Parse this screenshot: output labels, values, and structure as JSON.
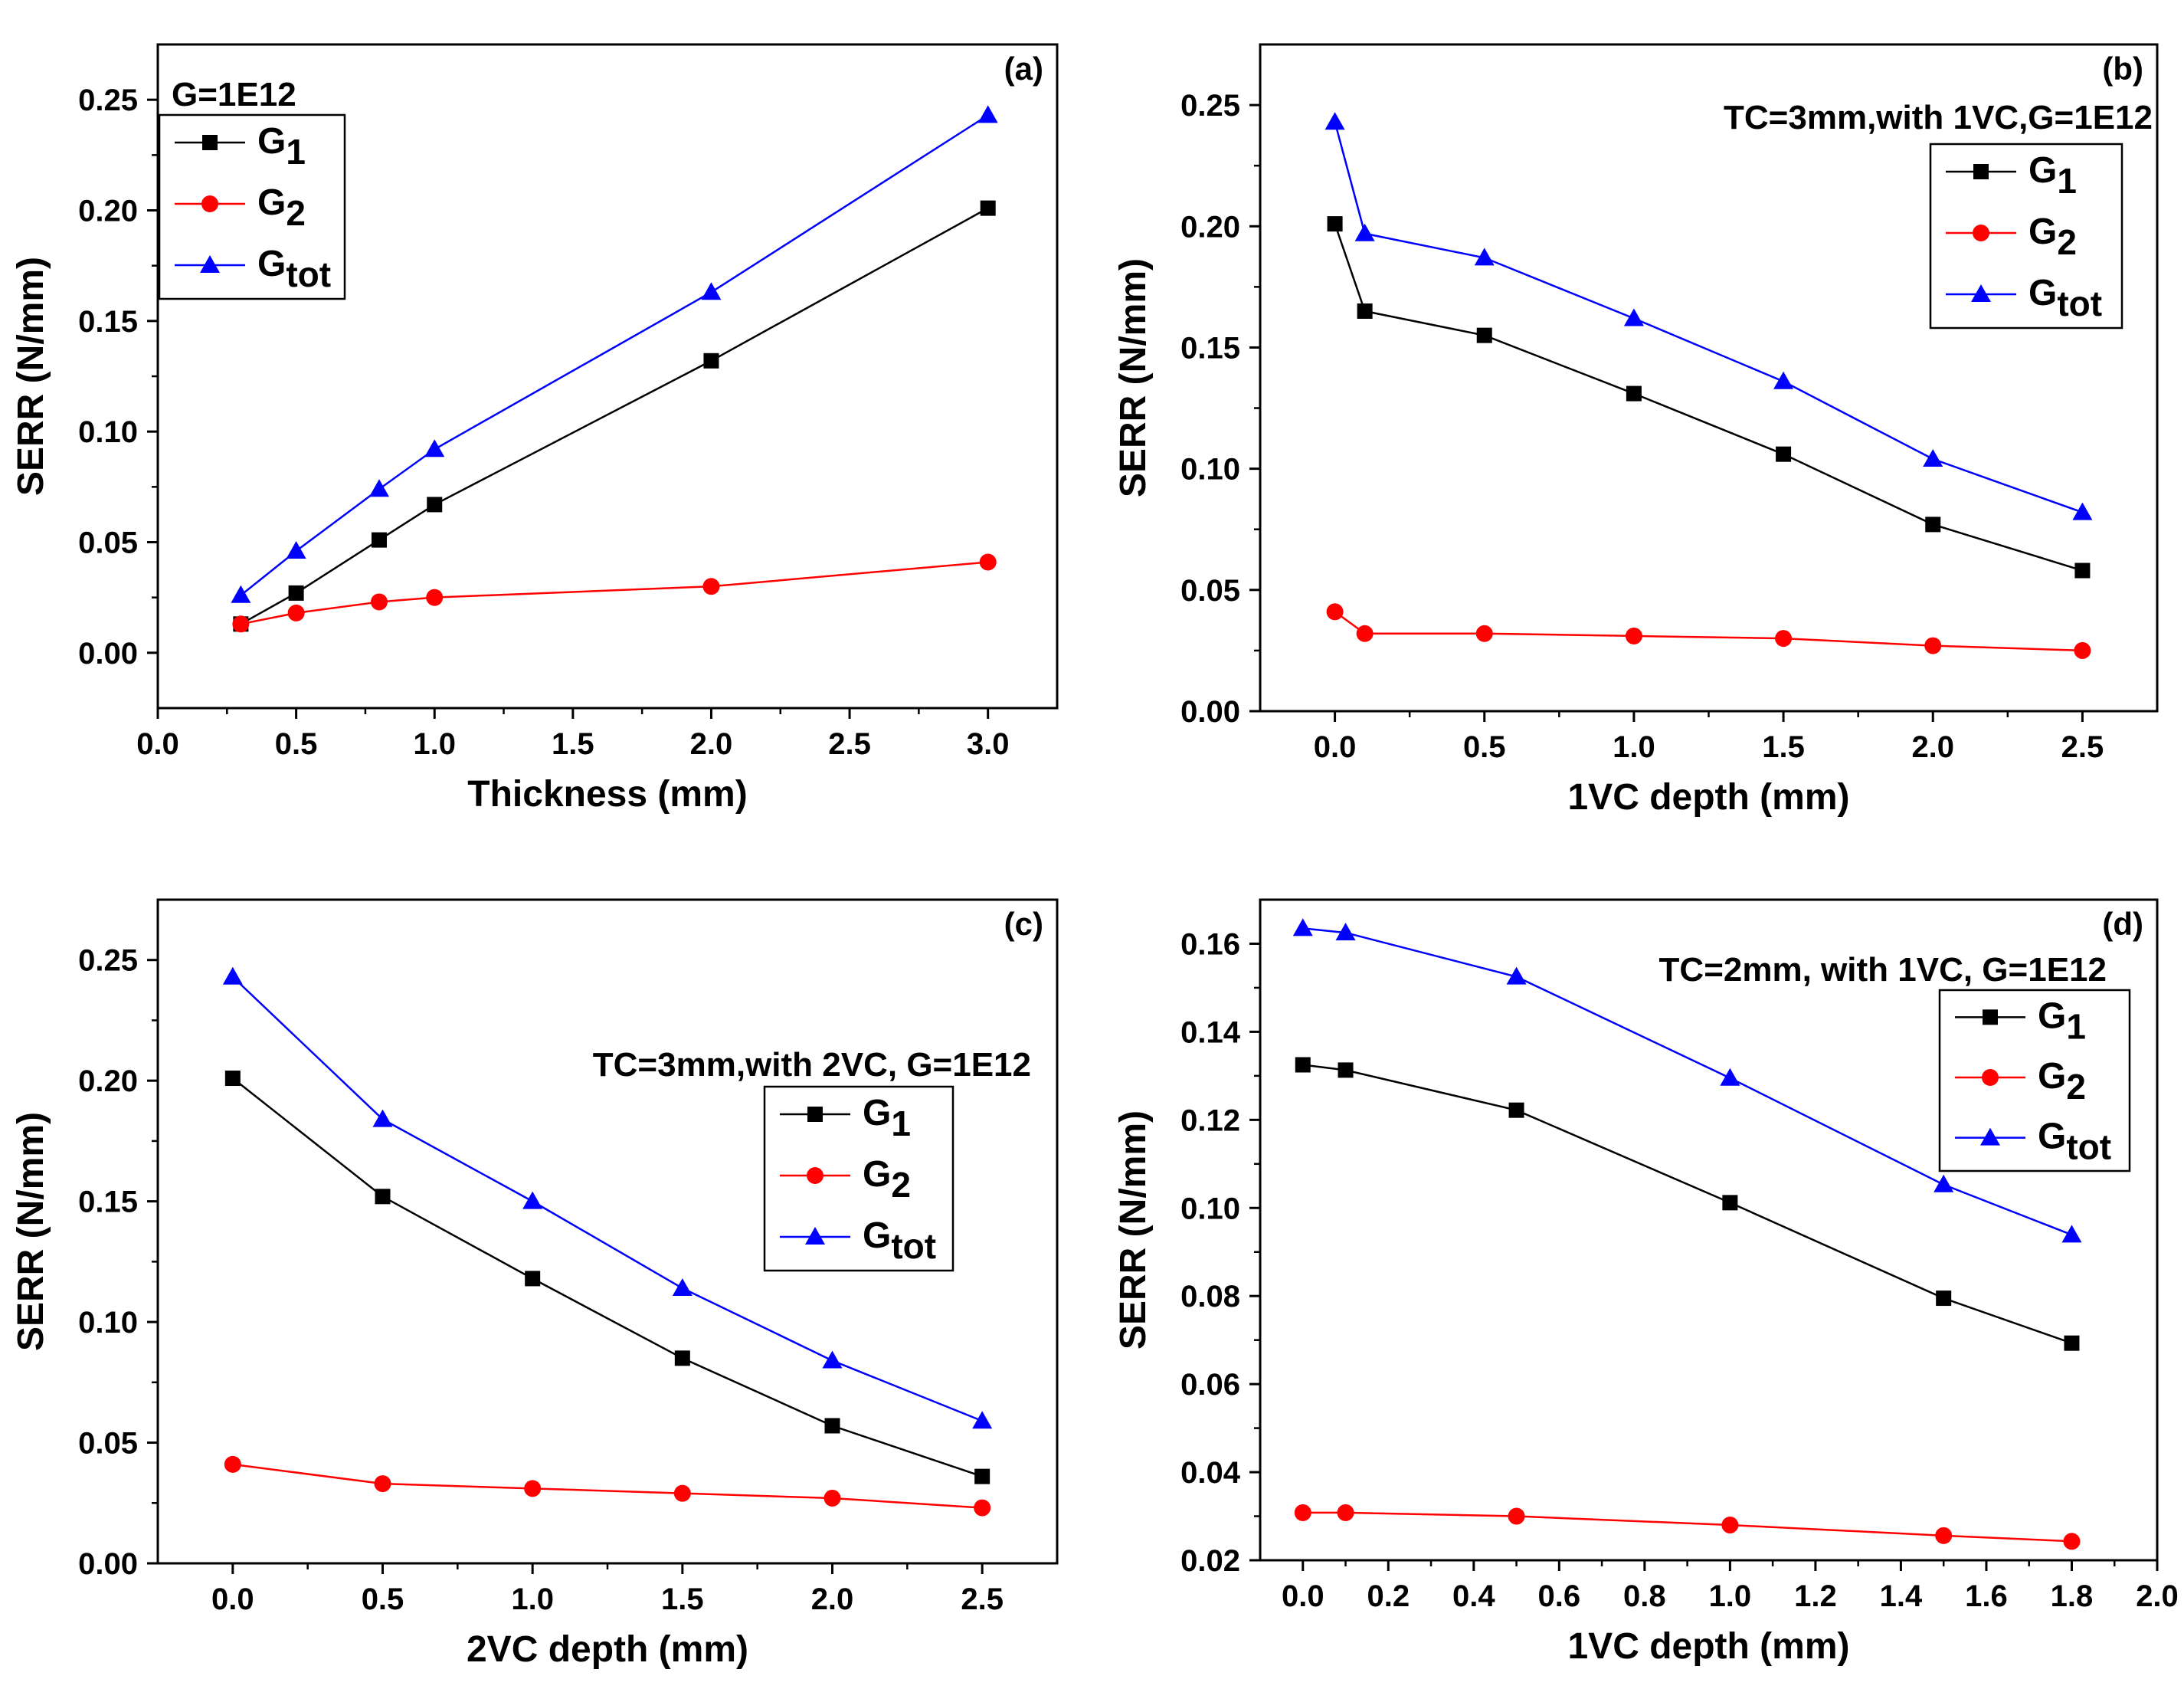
{
  "colors": {
    "G1": "#000000",
    "G2": "#ff0000",
    "Gtot": "#0000ff"
  },
  "chart_data": [
    {
      "type": "line",
      "panel_label": "(a)",
      "annotation": "G=1E12",
      "xlabel": "Thickness (mm)",
      "ylabel": "SERR (N/mm)",
      "xlim": [
        0.0,
        3.25
      ],
      "ylim": [
        -0.025,
        0.275
      ],
      "xticks": [
        0.0,
        0.5,
        1.0,
        1.5,
        2.0,
        2.5,
        3.0
      ],
      "xtick_labels": [
        "0.0",
        "0.5",
        "1.0",
        "1.5",
        "2.0",
        "2.5",
        "3.0"
      ],
      "yticks": [
        0.0,
        0.05,
        0.1,
        0.15,
        0.2,
        0.25
      ],
      "ytick_labels": [
        "0.00",
        "0.05",
        "0.10",
        "0.15",
        "0.20",
        "0.25"
      ],
      "legend_position": "top-left",
      "x": [
        0.3,
        0.5,
        0.8,
        1.0,
        2.0,
        3.0
      ],
      "series": [
        {
          "name": "G1",
          "base": "G",
          "sub": "1",
          "marker": "square",
          "values": [
            0.013,
            0.027,
            0.051,
            0.067,
            0.132,
            0.201
          ]
        },
        {
          "name": "G2",
          "base": "G",
          "sub": "2",
          "marker": "circle",
          "values": [
            0.013,
            0.018,
            0.023,
            0.025,
            0.03,
            0.041
          ]
        },
        {
          "name": "Gtot",
          "base": "G",
          "sub": "tot",
          "marker": "triangle",
          "values": [
            0.026,
            0.046,
            0.074,
            0.092,
            0.163,
            0.243
          ]
        }
      ]
    },
    {
      "type": "line",
      "panel_label": "(b)",
      "annotation": "TC=3mm,with 1VC,G=1E12",
      "xlabel": "1VC depth (mm)",
      "ylabel": "SERR (N/mm)",
      "xlim": [
        -0.25,
        2.75
      ],
      "ylim": [
        0.0,
        0.275
      ],
      "xticks": [
        0.0,
        0.5,
        1.0,
        1.5,
        2.0,
        2.5
      ],
      "xtick_labels": [
        "0.0",
        "0.5",
        "1.0",
        "1.5",
        "2.0",
        "2.5"
      ],
      "yticks": [
        0.0,
        0.05,
        0.1,
        0.15,
        0.2,
        0.25
      ],
      "ytick_labels": [
        "0.00",
        "0.05",
        "0.10",
        "0.15",
        "0.20",
        "0.25"
      ],
      "legend_position": "top-right",
      "x": [
        0.0,
        0.1,
        0.5,
        1.0,
        1.5,
        2.0,
        2.5
      ],
      "series": [
        {
          "name": "G1",
          "base": "G",
          "sub": "1",
          "marker": "square",
          "values": [
            0.201,
            0.165,
            0.155,
            0.131,
            0.106,
            0.077,
            0.058
          ]
        },
        {
          "name": "G2",
          "base": "G",
          "sub": "2",
          "marker": "circle",
          "values": [
            0.041,
            0.032,
            0.032,
            0.031,
            0.03,
            0.027,
            0.025
          ]
        },
        {
          "name": "Gtot",
          "base": "G",
          "sub": "tot",
          "marker": "triangle",
          "values": [
            0.243,
            0.197,
            0.187,
            0.162,
            0.136,
            0.104,
            0.082
          ]
        }
      ]
    },
    {
      "type": "line",
      "panel_label": "(c)",
      "annotation": "TC=3mm,with 2VC, G=1E12",
      "xlabel": "2VC depth (mm)",
      "ylabel": "SERR (N/mm)",
      "xlim": [
        -0.25,
        2.75
      ],
      "ylim": [
        0.0,
        0.275
      ],
      "xticks": [
        0.0,
        0.5,
        1.0,
        1.5,
        2.0,
        2.5
      ],
      "xtick_labels": [
        "0.0",
        "0.5",
        "1.0",
        "1.5",
        "2.0",
        "2.5"
      ],
      "yticks": [
        0.0,
        0.05,
        0.1,
        0.15,
        0.2,
        0.25
      ],
      "ytick_labels": [
        "0.00",
        "0.05",
        "0.10",
        "0.15",
        "0.20",
        "0.25"
      ],
      "legend_position": "right",
      "x": [
        0.0,
        0.5,
        1.0,
        1.5,
        2.0,
        2.5
      ],
      "series": [
        {
          "name": "G1",
          "base": "G",
          "sub": "1",
          "marker": "square",
          "values": [
            0.201,
            0.152,
            0.118,
            0.085,
            0.057,
            0.036
          ]
        },
        {
          "name": "G2",
          "base": "G",
          "sub": "2",
          "marker": "circle",
          "values": [
            0.041,
            0.033,
            0.031,
            0.029,
            0.027,
            0.023
          ]
        },
        {
          "name": "Gtot",
          "base": "G",
          "sub": "tot",
          "marker": "triangle",
          "values": [
            0.243,
            0.184,
            0.15,
            0.114,
            0.084,
            0.059
          ]
        }
      ]
    },
    {
      "type": "line",
      "panel_label": "(d)",
      "annotation": "TC=2mm, with 1VC, G=1E12",
      "xlabel": "1VC depth (mm)",
      "ylabel": "SERR (N/mm)",
      "xlim": [
        -0.1,
        2.0
      ],
      "ylim": [
        0.02,
        0.17
      ],
      "xticks": [
        0.0,
        0.2,
        0.4,
        0.6,
        0.8,
        1.0,
        1.2,
        1.4,
        1.6,
        1.8,
        2.0
      ],
      "xtick_labels": [
        "0.0",
        "0.2",
        "0.4",
        "0.6",
        "0.8",
        "1.0",
        "1.2",
        "1.4",
        "1.6",
        "1.8",
        "2.0"
      ],
      "yticks": [
        0.02,
        0.04,
        0.06,
        0.08,
        0.1,
        0.12,
        0.14,
        0.16
      ],
      "ytick_labels": [
        "0.02",
        "0.04",
        "0.06",
        "0.08",
        "0.10",
        "0.12",
        "0.14",
        "0.16"
      ],
      "legend_position": "top-right",
      "x": [
        0.0,
        0.1,
        0.5,
        1.0,
        1.5,
        1.8
      ],
      "series": [
        {
          "name": "G1",
          "base": "G",
          "sub": "1",
          "marker": "square",
          "values": [
            0.1325,
            0.1313,
            0.1222,
            0.1012,
            0.0795,
            0.0693
          ]
        },
        {
          "name": "G2",
          "base": "G",
          "sub": "2",
          "marker": "circle",
          "values": [
            0.0308,
            0.0308,
            0.03,
            0.028,
            0.0256,
            0.0243
          ]
        },
        {
          "name": "Gtot",
          "base": "G",
          "sub": "tot",
          "marker": "triangle",
          "values": [
            0.1635,
            0.1625,
            0.1525,
            0.1295,
            0.1053,
            0.0939
          ]
        }
      ]
    }
  ]
}
